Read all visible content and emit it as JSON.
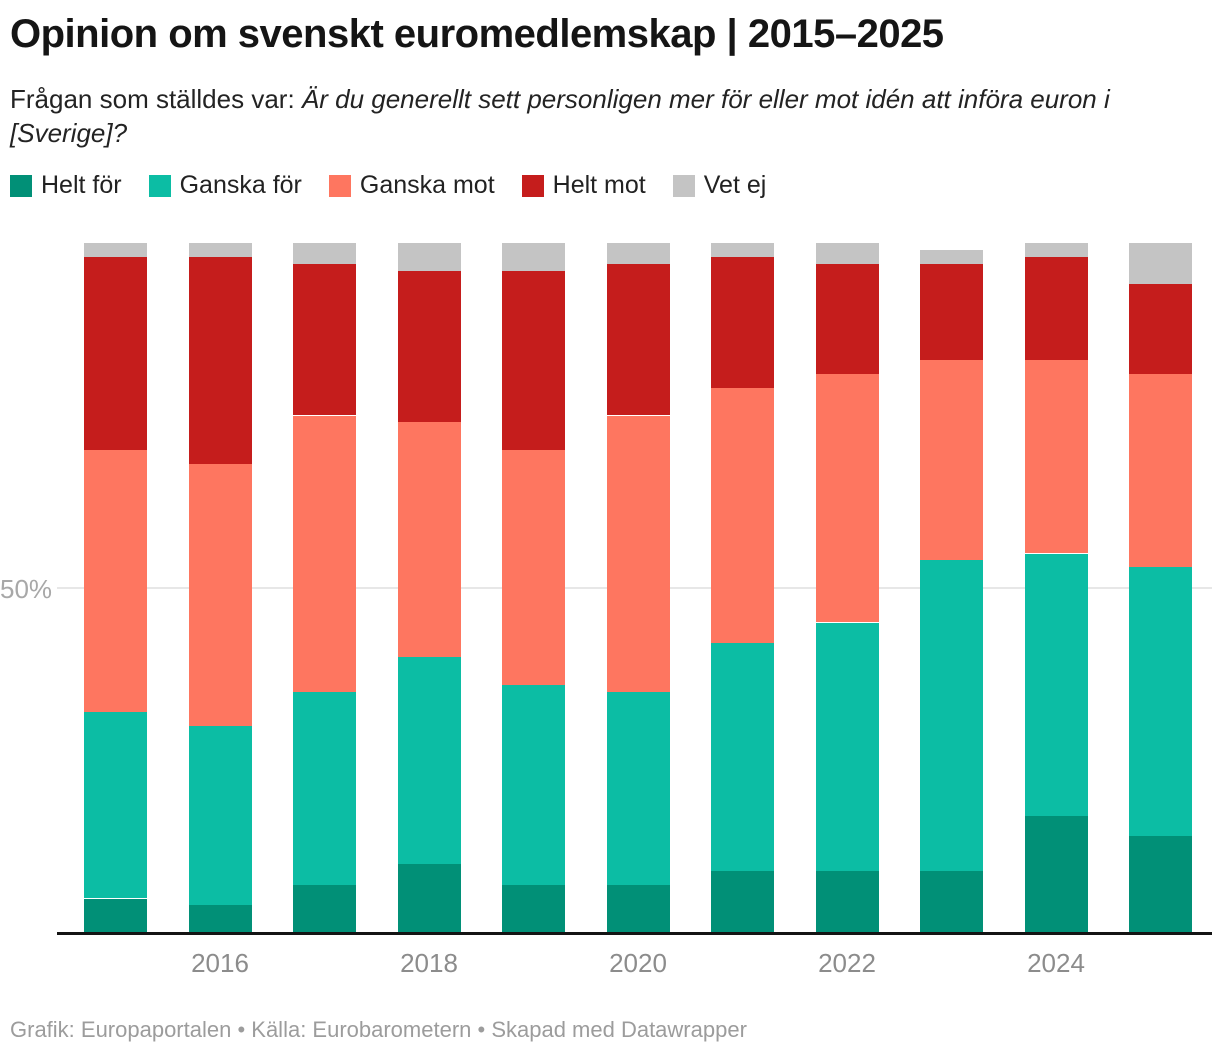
{
  "header": {
    "title": "Opinion om svenskt euromedlemskap | 2015–2025",
    "subtitle_prefix": "Frågan som ställdes var: ",
    "subtitle_question": "Är du generellt sett personligen mer för eller mot idén att införa euron i [Sverige]?"
  },
  "legend": [
    {
      "label": "Helt för",
      "color": "#019077"
    },
    {
      "label": "Ganska för",
      "color": "#0cbda4"
    },
    {
      "label": "Ganska mot",
      "color": "#fe7660"
    },
    {
      "label": "Helt mot",
      "color": "#c51d1c"
    },
    {
      "label": "Vet ej",
      "color": "#c4c4c4"
    }
  ],
  "axis": {
    "y_tick_label": "50%",
    "x_tick_labels": [
      "2016",
      "2018",
      "2020",
      "2022",
      "2024"
    ]
  },
  "footer": "Grafik: Europaportalen • Källa: Eurobarometern • Skapad med Datawrapper",
  "chart_data": {
    "type": "bar",
    "stacked": true,
    "unit": "percent",
    "title": "Opinion om svenskt euromedlemskap | 2015–2025",
    "categories": [
      2015,
      2016,
      2017,
      2018,
      2019,
      2020,
      2021,
      2022,
      2023,
      2024,
      2025
    ],
    "series": [
      {
        "name": "Helt för",
        "color": "#019077",
        "values": [
          5,
          4,
          7,
          10,
          7,
          7,
          9,
          9,
          9,
          17,
          14
        ]
      },
      {
        "name": "Ganska för",
        "color": "#0cbda4",
        "values": [
          27,
          26,
          28,
          30,
          29,
          28,
          33,
          36,
          45,
          38,
          39
        ]
      },
      {
        "name": "Ganska mot",
        "color": "#fe7660",
        "values": [
          38,
          38,
          40,
          34,
          34,
          40,
          37,
          36,
          29,
          28,
          28
        ]
      },
      {
        "name": "Helt mot",
        "color": "#c51d1c",
        "values": [
          28,
          30,
          22,
          22,
          26,
          22,
          19,
          16,
          14,
          15,
          13
        ]
      },
      {
        "name": "Vet ej",
        "color": "#c4c4c4",
        "values": [
          2,
          2,
          3,
          4,
          4,
          3,
          2,
          3,
          2,
          2,
          6
        ]
      }
    ],
    "ylim": [
      0,
      100
    ],
    "gridlines_at": [
      50
    ],
    "legend_position": "top",
    "x_axis_labeled_years": [
      2016,
      2018,
      2020,
      2022,
      2024
    ]
  }
}
